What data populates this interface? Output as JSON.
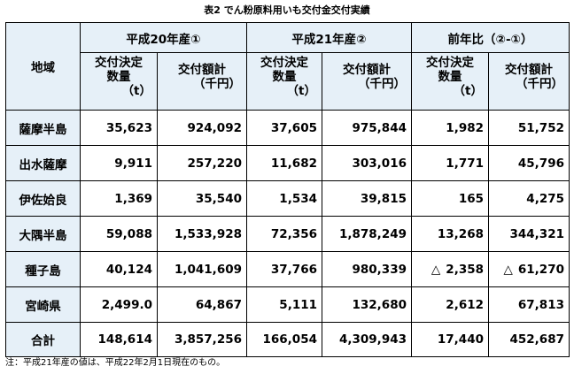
{
  "title": "表2 でん粉原料用いも交付金交付実績",
  "header": {
    "region_label": "地域",
    "groups": [
      "平成20年産①",
      "平成21年産②",
      "前年比（②-①）"
    ],
    "qty_label_line1": "交付決定",
    "qty_label_line2": "数量",
    "qty_unit": "（t）",
    "amt_label": "交付額計",
    "amt_unit": "（千円）"
  },
  "rows": [
    {
      "region": "薩摩半島",
      "q20": "35,623",
      "a20": "924,092",
      "q21": "37,605",
      "a21": "975,844",
      "dq": "1,982",
      "da": "51,752",
      "dq_tri": "",
      "da_tri": ""
    },
    {
      "region": "出水薩摩",
      "q20": "9,911",
      "a20": "257,220",
      "q21": "11,682",
      "a21": "303,016",
      "dq": "1,771",
      "da": "45,796",
      "dq_tri": "",
      "da_tri": ""
    },
    {
      "region": "伊佐姶良",
      "q20": "1,369",
      "a20": "35,540",
      "q21": "1,534",
      "a21": "39,815",
      "dq": "165",
      "da": "4,275",
      "dq_tri": "",
      "da_tri": ""
    },
    {
      "region": "大隅半島",
      "q20": "59,088",
      "a20": "1,533,928",
      "q21": "72,356",
      "a21": "1,878,249",
      "dq": "13,268",
      "da": "344,321",
      "dq_tri": "",
      "da_tri": ""
    },
    {
      "region": "種子島",
      "q20": "40,124",
      "a20": "1,041,609",
      "q21": "37,766",
      "a21": "980,339",
      "dq": "2,358",
      "da": "61,270",
      "dq_tri": "△",
      "da_tri": "△"
    },
    {
      "region": "宮崎県",
      "q20": "2,499.0",
      "a20": "64,867",
      "q21": "5,111",
      "a21": "132,680",
      "dq": "2,612",
      "da": "67,813",
      "dq_tri": "",
      "da_tri": ""
    },
    {
      "region": "合計",
      "q20": "148,614",
      "a20": "3,857,256",
      "q21": "166,054",
      "a21": "4,309,943",
      "dq": "17,440",
      "da": "452,687",
      "dq_tri": "",
      "da_tri": ""
    }
  ],
  "note": "注：平成21年産の値は、平成22年2月1日現在のもの。",
  "colors": {
    "header_bg": "#e6f0f8",
    "border": "#000000"
  }
}
